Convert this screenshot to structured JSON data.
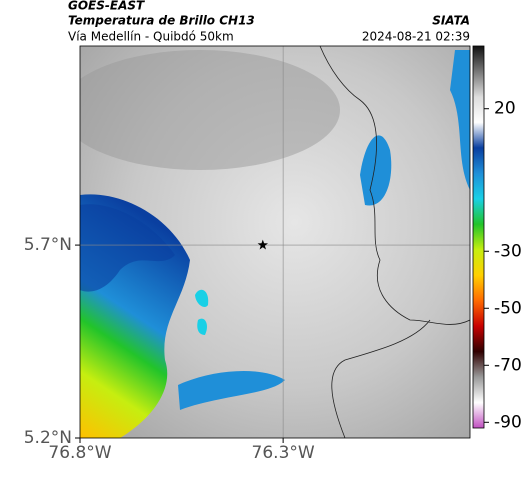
{
  "chart_data": {
    "type": "map",
    "title": "GOES-EAST",
    "subtitle": "Temperatura de Brillo CH13",
    "location": "Vía Medellín - Quibdó 50km",
    "source": "SIATA",
    "timestamp": "2024-08-21 02:39",
    "xlim": [
      -76.8,
      -75.84
    ],
    "ylim": [
      5.2,
      6.216
    ],
    "xticks": [
      {
        "value": -76.8,
        "label": "76.8°W"
      },
      {
        "value": -76.3,
        "label": "76.3°W"
      }
    ],
    "yticks": [
      {
        "value": 5.2,
        "label": "5.2°N"
      },
      {
        "value": 5.7,
        "label": "5.7°N"
      }
    ],
    "marker": {
      "lon": -76.35,
      "lat": 5.7
    },
    "clim": [
      -92,
      42
    ],
    "cticks": [
      20,
      -30,
      -50,
      -70,
      -90
    ],
    "colormap": [
      "#111111",
      "#777777",
      "#dddddd",
      "#ffffff",
      "#0a3fa0",
      "#1f8fd8",
      "#19d0e6",
      "#22c42a",
      "#c6ee10",
      "#ffd000",
      "#ff6a00",
      "#c80000",
      "#300000",
      "#999999",
      "#ffffff",
      "#c050c0"
    ]
  }
}
